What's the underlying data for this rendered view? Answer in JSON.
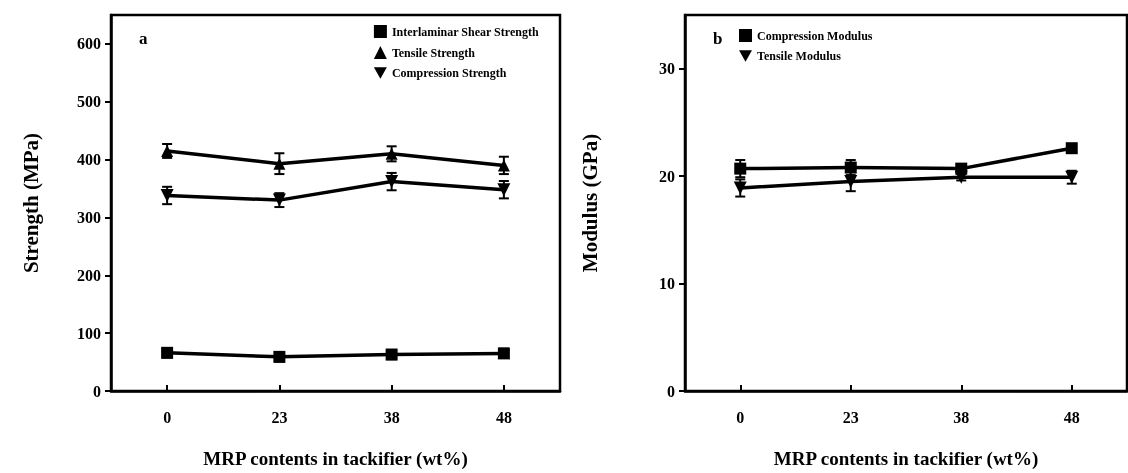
{
  "chart_data": [
    {
      "type": "line",
      "xlabel": "MRP contents in tackifier (wt%)",
      "ylabel": "Strength (MPa)",
      "categories": [
        "0",
        "23",
        "38",
        "48"
      ],
      "ylim": [
        0,
        650
      ],
      "yticks": [
        0,
        100,
        200,
        300,
        400,
        500,
        600
      ],
      "grid": false,
      "legend": "top right",
      "line_style": "solid",
      "annotations": [
        "a"
      ],
      "series": [
        {
          "name": "Interlaminar Shear Strength",
          "color": "#000000",
          "marker": "square",
          "values": [
            66,
            59,
            63,
            65
          ],
          "errors": [
            8,
            8,
            8,
            8
          ]
        },
        {
          "name": "Tensile Strength",
          "color": "#000000",
          "marker": "triangle",
          "values": [
            415,
            393,
            410,
            390
          ],
          "errors": [
            12,
            18,
            13,
            15
          ]
        },
        {
          "name": "Compression Strength",
          "color": "#000000",
          "marker": "triangle-down",
          "values": [
            338,
            330,
            362,
            348
          ],
          "errors": [
            15,
            12,
            15,
            15
          ]
        }
      ]
    },
    {
      "type": "line",
      "xlabel": "MRP contents in tackifier (wt%)",
      "ylabel": "Modulus (GPa)",
      "categories": [
        "0",
        "23",
        "38",
        "48"
      ],
      "ylim": [
        0,
        35
      ],
      "yticks": [
        0,
        10,
        20,
        30
      ],
      "grid": false,
      "legend": "top left",
      "line_style": "solid",
      "annotations": [
        "b"
      ],
      "series": [
        {
          "name": "Compression Modulus",
          "color": "#000000",
          "marker": "square",
          "values": [
            20.7,
            20.8,
            20.7,
            22.6
          ],
          "errors": [
            0.8,
            0.7,
            0.3,
            0.3
          ]
        },
        {
          "name": "Tensile Modulus",
          "color": "#000000",
          "marker": "triangle-down",
          "values": [
            18.9,
            19.5,
            19.9,
            19.9
          ],
          "errors": [
            0.8,
            0.9,
            0.3,
            0.6
          ]
        }
      ]
    }
  ]
}
